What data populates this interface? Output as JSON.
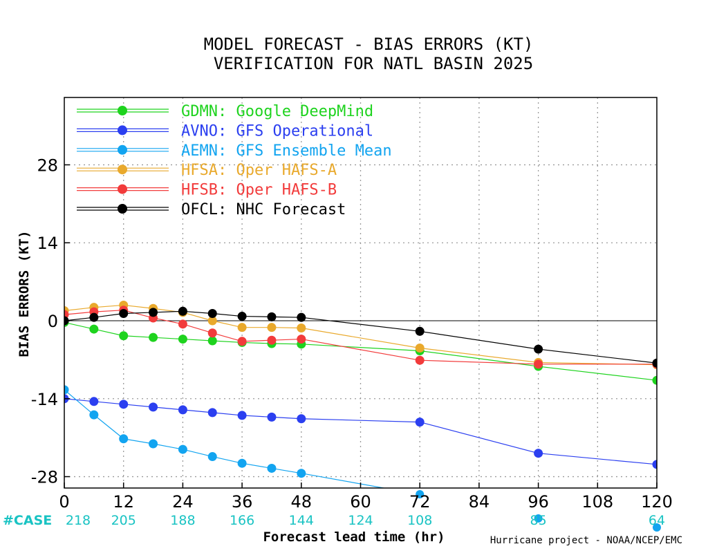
{
  "chart_data": {
    "type": "line",
    "title_line1": "MODEL FORECAST - BIAS ERRORS (KT)",
    "title_line2": "VERIFICATION FOR NATL BASIN 2025",
    "xlabel": "Forecast lead time (hr)",
    "ylabel": "BIAS ERRORS (KT)",
    "credit": "Hurricane project - NOAA/NCEP/EMC",
    "xlim": [
      0,
      120
    ],
    "ylim": [
      -30,
      40
    ],
    "x_ticks": [
      0,
      12,
      24,
      36,
      48,
      60,
      72,
      84,
      96,
      108,
      120
    ],
    "x_tick_labels": [
      "0",
      "12",
      "24",
      "36",
      "48",
      "60",
      "72",
      "84",
      "96",
      "108",
      "120"
    ],
    "y_ticks": [
      -28,
      -14,
      0,
      14,
      28
    ],
    "y_tick_labels": [
      "-28",
      "-14",
      "0",
      "14",
      "28"
    ],
    "grid": true,
    "legend_position": "top-left",
    "case_label": "#CASE",
    "cases": [
      {
        "x": 0,
        "label": "218"
      },
      {
        "x": 12,
        "label": "205"
      },
      {
        "x": 24,
        "label": "188"
      },
      {
        "x": 36,
        "label": "166"
      },
      {
        "x": 48,
        "label": "144"
      },
      {
        "x": 60,
        "label": "124"
      },
      {
        "x": 72,
        "label": "108"
      },
      {
        "x": 96,
        "label": "85"
      },
      {
        "x": 120,
        "label": "64"
      }
    ],
    "series": [
      {
        "name": "GDMN: Google DeepMind",
        "color": "#1ed31e",
        "x": [
          0,
          6,
          12,
          18,
          24,
          30,
          36,
          42,
          48,
          72,
          96,
          120
        ],
        "values": [
          -0.3,
          -1.5,
          -2.7,
          -3.0,
          -3.3,
          -3.6,
          -3.9,
          -4.1,
          -4.2,
          -5.4,
          -8.2,
          -10.7
        ]
      },
      {
        "name": "AVNO: GFS Operational",
        "color": "#2b3ff0",
        "x": [
          0,
          6,
          12,
          18,
          24,
          30,
          36,
          42,
          48,
          72,
          96,
          120
        ],
        "values": [
          -14.0,
          -14.5,
          -15.0,
          -15.5,
          -16.0,
          -16.5,
          -17.0,
          -17.3,
          -17.6,
          -18.2,
          -23.8,
          -25.8
        ]
      },
      {
        "name": "AEMN: GFS Ensemble Mean",
        "color": "#12a4f0",
        "x": [
          0,
          6,
          12,
          18,
          24,
          30,
          36,
          42,
          48,
          72,
          96,
          120
        ],
        "values": [
          -12.4,
          -16.9,
          -21.2,
          -22.1,
          -23.1,
          -24.4,
          -25.6,
          -26.5,
          -27.4,
          -31.2,
          -35.8,
          -37.3
        ]
      },
      {
        "name": "HFSA: Oper HAFS-A",
        "color": "#e9a92c",
        "x": [
          0,
          6,
          12,
          18,
          24,
          30,
          36,
          42,
          48,
          72,
          96,
          120
        ],
        "values": [
          1.8,
          2.4,
          2.8,
          2.2,
          1.5,
          0.0,
          -1.2,
          -1.2,
          -1.3,
          -4.9,
          -7.5,
          -7.9
        ]
      },
      {
        "name": "HFSB: Oper HAFS-B",
        "color": "#f23b3b",
        "x": [
          0,
          6,
          12,
          18,
          24,
          30,
          36,
          42,
          48,
          72,
          96,
          120
        ],
        "values": [
          1.1,
          1.6,
          1.9,
          0.5,
          -0.6,
          -2.2,
          -3.7,
          -3.5,
          -3.3,
          -7.1,
          -7.8,
          -7.8
        ]
      },
      {
        "name": "OFCL: NHC Forecast",
        "color": "#000000",
        "x": [
          0,
          6,
          12,
          18,
          24,
          30,
          36,
          42,
          48,
          72,
          96,
          120
        ],
        "values": [
          0.0,
          0.6,
          1.3,
          1.5,
          1.7,
          1.3,
          0.8,
          0.7,
          0.6,
          -1.9,
          -5.1,
          -7.6
        ]
      }
    ]
  }
}
